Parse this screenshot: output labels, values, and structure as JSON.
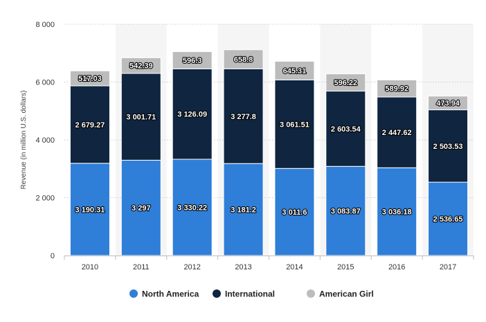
{
  "chart_data": {
    "type": "bar",
    "stacked": true,
    "categories": [
      "2010",
      "2011",
      "2012",
      "2013",
      "2014",
      "2015",
      "2016",
      "2017"
    ],
    "series": [
      {
        "name": "North America",
        "color": "#2f7ed8",
        "values": [
          3190.31,
          3297,
          3330.22,
          3181.2,
          3011.6,
          3083.87,
          3036.18,
          2536.65
        ],
        "labels": [
          "3 190.31",
          "3 297",
          "3 330.22",
          "3 181.2",
          "3 011.6",
          "3 083.87",
          "3 036.18",
          "2 536.65"
        ]
      },
      {
        "name": "International",
        "color": "#0f2540",
        "values": [
          2679.27,
          3001.71,
          3126.09,
          3277.8,
          3061.51,
          2603.54,
          2447.62,
          2503.53
        ],
        "labels": [
          "2 679.27",
          "3 001.71",
          "3 126.09",
          "3 277.8",
          "3 061.51",
          "2 603.54",
          "2 447.62",
          "2 503.53"
        ]
      },
      {
        "name": "American Girl",
        "color": "#bcbcbc",
        "values": [
          517.03,
          542.39,
          596.3,
          658.8,
          645.31,
          596.22,
          589.92,
          473.94
        ],
        "labels": [
          "517.03",
          "542.39",
          "596.3",
          "658.8",
          "645.31",
          "596.22",
          "589.92",
          "473.94"
        ]
      }
    ],
    "ylabel": "Revenue (in million U.S. dollars)",
    "xlabel": "",
    "ylim": [
      0,
      8000
    ],
    "yticks": [
      0,
      2000,
      4000,
      6000,
      8000
    ],
    "ytick_labels": [
      "0",
      "2 000",
      "4 000",
      "6 000",
      "8 000"
    ],
    "grid": true,
    "legend_position": "bottom"
  }
}
